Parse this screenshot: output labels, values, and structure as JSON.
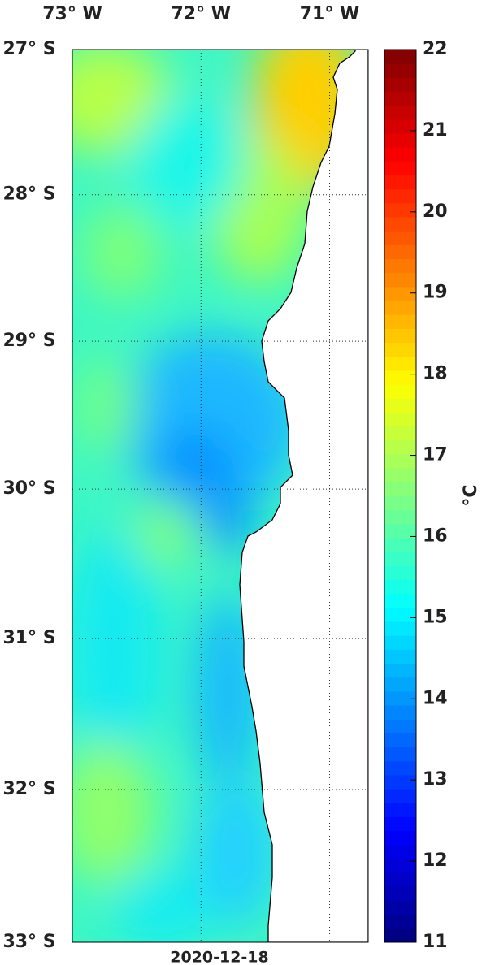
{
  "map": {
    "lon_lim": [
      -73,
      -70.7
    ],
    "lat_lim": [
      -33,
      -27
    ],
    "lon_ticks": [
      {
        "value": -73,
        "label": "73° W"
      },
      {
        "value": -72,
        "label": "72° W"
      },
      {
        "value": -71,
        "label": "71° W"
      }
    ],
    "lat_ticks": [
      {
        "value": -27,
        "label": "27° S"
      },
      {
        "value": -28,
        "label": "28° S"
      },
      {
        "value": -29,
        "label": "29° S"
      },
      {
        "value": -30,
        "label": "30° S"
      },
      {
        "value": -31,
        "label": "31° S"
      },
      {
        "value": -32,
        "label": "32° S"
      },
      {
        "value": -33,
        "label": "33° S"
      }
    ],
    "date": "2020-12-18",
    "colorbar": {
      "lim": [
        11,
        22
      ],
      "ticks": [
        11,
        12,
        13,
        14,
        15,
        16,
        17,
        18,
        19,
        20,
        21,
        22
      ],
      "label": "°C",
      "colormap": "jet"
    }
  }
}
